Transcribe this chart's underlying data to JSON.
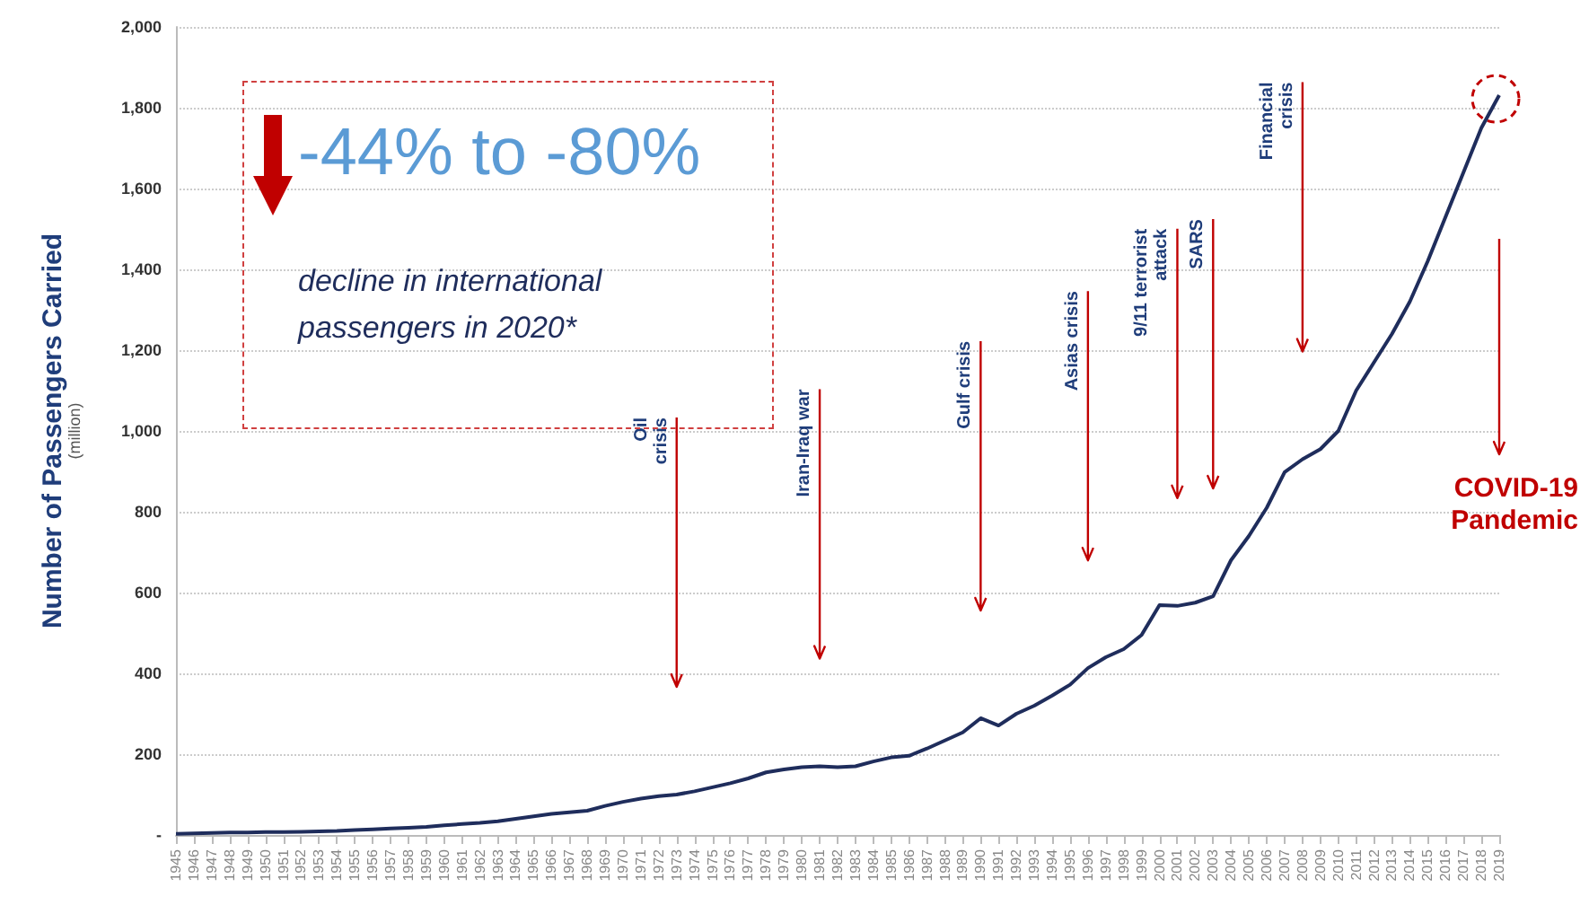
{
  "chart_data": {
    "type": "line",
    "ylabel": "Number of Passengers Carried\n(million)",
    "categories": [
      "1945",
      "1946",
      "1947",
      "1948",
      "1949",
      "1950",
      "1951",
      "1952",
      "1953",
      "1954",
      "1955",
      "1956",
      "1957",
      "1958",
      "1959",
      "1960",
      "1961",
      "1962",
      "1963",
      "1964",
      "1965",
      "1966",
      "1967",
      "1968",
      "1969",
      "1970",
      "1971",
      "1972",
      "1973",
      "1974",
      "1975",
      "1976",
      "1977",
      "1978",
      "1979",
      "1980",
      "1981",
      "1982",
      "1983",
      "1984",
      "1985",
      "1986",
      "1987",
      "1988",
      "1989",
      "1990",
      "1991",
      "1992",
      "1993",
      "1994",
      "1995",
      "1996",
      "1997",
      "1998",
      "1999",
      "2000",
      "2001",
      "2002",
      "2003",
      "2004",
      "2005",
      "2006",
      "2007",
      "2008",
      "2009",
      "2010",
      "2011",
      "2012",
      "2013",
      "2014",
      "2015",
      "2016",
      "2017",
      "2018",
      "2019"
    ],
    "series": [
      {
        "color": "#1f2d5c",
        "values": [
          3,
          4,
          5,
          6,
          6,
          7,
          7,
          8,
          9,
          10,
          12,
          14,
          16,
          18,
          20,
          24,
          27,
          30,
          34,
          40,
          46,
          52,
          56,
          60,
          72,
          82,
          90,
          96,
          100,
          108,
          118,
          128,
          140,
          155,
          162,
          168,
          170,
          168,
          170,
          182,
          192,
          196,
          214,
          234,
          254,
          289,
          271,
          300,
          320,
          345,
          372,
          413,
          440,
          460,
          495,
          569,
          567,
          575,
          591,
          680,
          740,
          810,
          898,
          930,
          955,
          1000,
          1100,
          1170,
          1240,
          1320,
          1420,
          1530,
          1640,
          1750,
          1831
        ]
      }
    ],
    "ylim": [
      0,
      2000
    ],
    "yticks": [
      {
        "value": 0,
        "label": "-"
      },
      200,
      400,
      600,
      800,
      {
        "value": 1000,
        "label": "1,000"
      },
      {
        "value": 1200,
        "label": "1,200"
      },
      {
        "value": 1400,
        "label": "1,400"
      },
      {
        "value": 1600,
        "label": "1,600"
      },
      {
        "value": 1800,
        "label": "1,800"
      },
      {
        "value": 2000,
        "label": "2,000"
      }
    ],
    "grid": "y",
    "marker": "none",
    "line_style": "solid",
    "annotations": [
      "-44% to -80%",
      "decline in international passengers in 2020*"
    ],
    "ref_lines": [
      {
        "axis": "x",
        "value": "1973",
        "label": "Oil\ncrisis",
        "color": "#c00000"
      },
      {
        "axis": "x",
        "value": "1981",
        "label": "Iran-Iraq war",
        "color": "#c00000"
      },
      {
        "axis": "x",
        "value": "1990",
        "label": "Gulf crisis",
        "color": "#c00000"
      },
      {
        "axis": "x",
        "value": "1996",
        "label": "Asias crisis",
        "color": "#c00000"
      },
      {
        "axis": "x",
        "value": "2001",
        "label": "9/11 terrorist\nattack",
        "color": "#c00000"
      },
      {
        "axis": "x",
        "value": "2003",
        "label": "SARS",
        "color": "#c00000"
      },
      {
        "axis": "x",
        "value": "2008",
        "label": "Financial\ncrisis",
        "color": "#c00000"
      },
      {
        "axis": "x",
        "value": "2019",
        "label": "COVID-19\nPandemic",
        "color": "#c00000"
      }
    ]
  }
}
